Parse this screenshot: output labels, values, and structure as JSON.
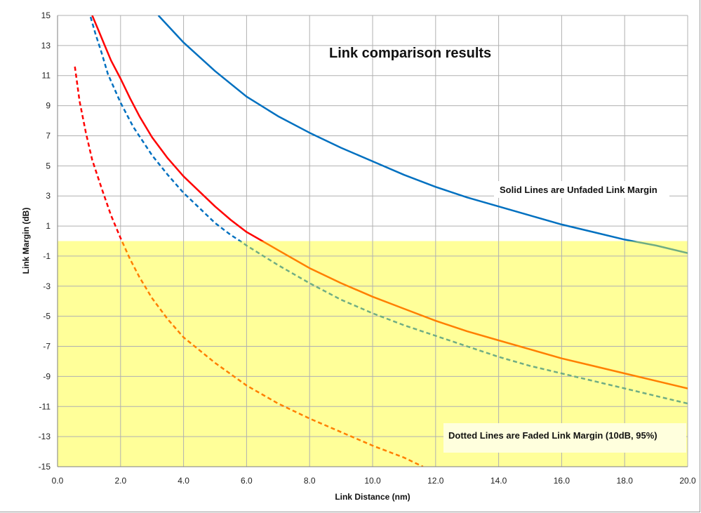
{
  "chart_data": {
    "type": "line",
    "title": "Link comparison results",
    "xlabel": "Link Distance (nm)",
    "ylabel": "Link Margin (dB)",
    "xlim": [
      0,
      20
    ],
    "ylim": [
      -15,
      15
    ],
    "x_ticks": [
      "0.0",
      "2.0",
      "4.0",
      "6.0",
      "8.0",
      "10.0",
      "12.0",
      "14.0",
      "16.0",
      "18.0",
      "20.0"
    ],
    "y_ticks": [
      "15",
      "13",
      "11",
      "9",
      "7",
      "5",
      "3",
      "1",
      "-1",
      "-3",
      "-5",
      "-7",
      "-9",
      "-11",
      "-13",
      "-15"
    ],
    "grid": true,
    "shaded_region": {
      "y_from": -15,
      "y_to": 0,
      "color": "#ffff99"
    },
    "annotations": [
      {
        "text": "Solid Lines are Unfaded Link Margin"
      },
      {
        "text": "Dotted Lines are Faded Link Margin (10dB, 95%)"
      }
    ],
    "series": [
      {
        "style": "solid",
        "color_above": "#0070c0",
        "color_below": "#70ad84",
        "x": [
          3.2,
          4.0,
          5.0,
          6.0,
          7.0,
          8.0,
          9.0,
          10.0,
          11.0,
          12.0,
          13.0,
          14.0,
          15.0,
          16.0,
          17.0,
          18.0,
          19.0,
          20.0
        ],
        "y": [
          15.0,
          13.2,
          11.3,
          9.6,
          8.3,
          7.2,
          6.2,
          5.3,
          4.4,
          3.6,
          2.9,
          2.3,
          1.7,
          1.1,
          0.6,
          0.1,
          -0.3,
          -0.8
        ]
      },
      {
        "style": "solid",
        "color_above": "#ff0000",
        "color_below": "#ff7f00",
        "x": [
          1.1,
          1.3,
          1.5,
          1.7,
          2.0,
          2.3,
          2.6,
          3.0,
          3.5,
          4.0,
          4.5,
          5.0,
          5.5,
          6.0,
          6.5,
          7.0,
          8.0,
          9.0,
          10.0,
          11.0,
          12.0,
          13.0,
          14.0,
          15.0,
          16.0,
          17.0,
          18.0,
          19.0,
          20.0
        ],
        "y": [
          15.0,
          14.0,
          13.0,
          12.0,
          10.8,
          9.5,
          8.3,
          6.9,
          5.5,
          4.3,
          3.3,
          2.3,
          1.4,
          0.6,
          0.0,
          -0.6,
          -1.8,
          -2.8,
          -3.7,
          -4.5,
          -5.3,
          -6.0,
          -6.6,
          -7.2,
          -7.8,
          -8.3,
          -8.8,
          -9.3,
          -9.8
        ]
      },
      {
        "style": "dashed",
        "color_above": "#0070c0",
        "color_below": "#70ad84",
        "x": [
          1.05,
          1.2,
          1.4,
          1.6,
          2.0,
          2.4,
          3.0,
          3.5,
          4.0,
          4.5,
          5.0,
          5.5,
          5.8,
          6.0,
          7.0,
          8.0,
          9.0,
          10.0,
          11.0,
          12.0,
          13.0,
          14.0,
          15.0,
          16.0,
          17.0,
          18.0,
          19.0,
          20.0
        ],
        "y": [
          14.9,
          13.8,
          12.5,
          11.1,
          9.2,
          7.6,
          5.7,
          4.4,
          3.2,
          2.2,
          1.2,
          0.4,
          0.0,
          -0.3,
          -1.6,
          -2.8,
          -3.9,
          -4.8,
          -5.6,
          -6.3,
          -7.0,
          -7.7,
          -8.3,
          -8.8,
          -9.3,
          -9.8,
          -10.3,
          -10.8
        ]
      },
      {
        "style": "dashed",
        "color_above": "#ff0000",
        "color_below": "#ff7f00",
        "x": [
          0.55,
          0.7,
          0.9,
          1.1,
          1.4,
          1.7,
          2.0,
          2.3,
          2.6,
          3.0,
          3.5,
          4.0,
          5.0,
          6.0,
          7.0,
          8.0,
          9.0,
          10.0,
          11.0,
          11.6
        ],
        "y": [
          11.6,
          9.3,
          7.2,
          5.4,
          3.5,
          1.7,
          0.2,
          -1.2,
          -2.4,
          -3.8,
          -5.2,
          -6.4,
          -8.1,
          -9.6,
          -10.8,
          -11.8,
          -12.7,
          -13.6,
          -14.4,
          -15.0
        ]
      }
    ]
  }
}
